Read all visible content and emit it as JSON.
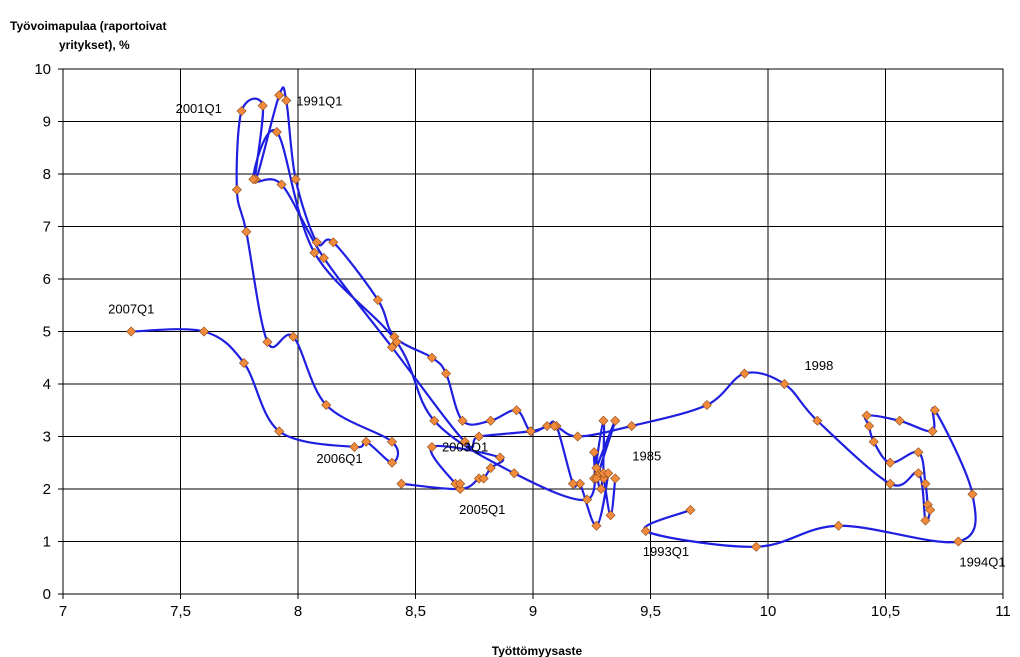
{
  "chart_data": {
    "type": "line",
    "ylabel": "Työvoimapulaa (raportoivat yritykset), %",
    "ylabel_lines": [
      "Työvoimapulaa (raportoivat",
      "yritykset), %"
    ],
    "xlabel": "Työttömyysaste",
    "xlim": [
      7,
      11
    ],
    "ylim": [
      0,
      10
    ],
    "grid": true,
    "x_ticks": [
      {
        "value": 7,
        "label": "7"
      },
      {
        "value": 7.5,
        "label": "7,5"
      },
      {
        "value": 8,
        "label": "8"
      },
      {
        "value": 8.5,
        "label": "8,5"
      },
      {
        "value": 9,
        "label": "9"
      },
      {
        "value": 9.5,
        "label": "9,5"
      },
      {
        "value": 10,
        "label": "10"
      },
      {
        "value": 10.5,
        "label": "10,5"
      },
      {
        "value": 11,
        "label": "11"
      }
    ],
    "y_ticks": [
      {
        "value": 0,
        "label": "0"
      },
      {
        "value": 1,
        "label": "1"
      },
      {
        "value": 2,
        "label": "2"
      },
      {
        "value": 3,
        "label": "3"
      },
      {
        "value": 4,
        "label": "4"
      },
      {
        "value": 5,
        "label": "5"
      },
      {
        "value": 6,
        "label": "6"
      },
      {
        "value": 7,
        "label": "7"
      },
      {
        "value": 8,
        "label": "8"
      },
      {
        "value": 9,
        "label": "9"
      },
      {
        "value": 10,
        "label": "10"
      }
    ],
    "series": [
      {
        "line_color": "#1f1fe0",
        "marker_color": "#f28a3c",
        "points": [
          [
            9.35,
            2.2
          ],
          [
            9.33,
            1.5
          ],
          [
            9.3,
            2.2
          ],
          [
            9.29,
            2.0
          ],
          [
            9.28,
            2.3
          ],
          [
            9.35,
            3.3
          ],
          [
            9.27,
            2.4
          ],
          [
            9.26,
            2.2
          ],
          [
            9.3,
            3.3
          ],
          [
            9.3,
            2.3
          ],
          [
            9.32,
            2.3
          ],
          [
            9.27,
            1.3
          ],
          [
            9.2,
            2.1
          ],
          [
            9.17,
            2.1
          ],
          [
            9.1,
            3.2
          ],
          [
            9.06,
            3.2
          ],
          [
            8.99,
            3.1
          ],
          [
            8.93,
            3.5
          ],
          [
            8.82,
            3.3
          ],
          [
            8.7,
            3.3
          ],
          [
            8.63,
            4.2
          ],
          [
            8.57,
            4.5
          ],
          [
            8.41,
            4.9
          ],
          [
            8.34,
            5.6
          ],
          [
            8.15,
            6.7
          ],
          [
            8.08,
            6.7
          ],
          [
            7.99,
            7.9
          ],
          [
            7.95,
            9.4
          ],
          [
            7.92,
            9.5
          ],
          [
            7.82,
            7.9
          ],
          [
            7.85,
            9.3
          ],
          [
            7.76,
            9.2
          ],
          [
            7.74,
            7.7
          ],
          [
            7.78,
            6.9
          ],
          [
            7.87,
            4.8
          ],
          [
            7.98,
            4.9
          ],
          [
            8.12,
            3.6
          ],
          [
            8.4,
            2.9
          ],
          [
            8.4,
            2.5
          ],
          [
            8.29,
            2.9
          ],
          [
            8.24,
            2.8
          ],
          [
            7.92,
            3.1
          ],
          [
            7.77,
            4.4
          ],
          [
            7.6,
            5.0
          ],
          [
            7.29,
            5.0
          ]
        ]
      },
      {
        "line_color": "#1f1fe0",
        "marker_color": "#f28a3c",
        "points": [
          [
            9.67,
            1.6
          ],
          [
            9.48,
            1.2
          ],
          [
            9.95,
            0.9
          ],
          [
            10.3,
            1.3
          ],
          [
            10.81,
            1.0
          ],
          [
            10.87,
            1.9
          ],
          [
            10.71,
            3.5
          ],
          [
            10.7,
            3.1
          ],
          [
            10.56,
            3.3
          ],
          [
            10.42,
            3.4
          ],
          [
            10.43,
            3.2
          ],
          [
            10.45,
            2.9
          ],
          [
            10.52,
            2.5
          ],
          [
            10.64,
            2.7
          ],
          [
            10.67,
            2.1
          ],
          [
            10.68,
            1.7
          ],
          [
            10.69,
            1.6
          ],
          [
            10.67,
            1.4
          ],
          [
            10.64,
            2.3
          ],
          [
            10.52,
            2.1
          ],
          [
            10.21,
            3.3
          ],
          [
            10.07,
            4.0
          ],
          [
            9.9,
            4.2
          ],
          [
            9.74,
            3.6
          ],
          [
            9.42,
            3.2
          ],
          [
            9.19,
            3.0
          ],
          [
            9.09,
            3.2
          ],
          [
            8.99,
            3.1
          ],
          [
            8.77,
            3.0
          ],
          [
            8.71,
            2.9
          ],
          [
            8.4,
            4.7
          ],
          [
            8.11,
            6.4
          ],
          [
            7.93,
            7.8
          ],
          [
            7.81,
            7.9
          ],
          [
            7.91,
            8.8
          ],
          [
            8.07,
            6.5
          ],
          [
            8.42,
            4.8
          ],
          [
            8.58,
            3.3
          ],
          [
            8.92,
            2.3
          ],
          [
            9.23,
            1.8
          ],
          [
            9.26,
            2.7
          ],
          [
            9.27,
            2.2
          ]
        ]
      },
      {
        "line_color": "#1f1fe0",
        "marker_color": "#f28a3c",
        "points": [
          [
            8.44,
            2.1
          ],
          [
            8.69,
            2.0
          ],
          [
            8.77,
            2.2
          ],
          [
            8.79,
            2.2
          ],
          [
            8.82,
            2.4
          ],
          [
            8.86,
            2.6
          ],
          [
            8.57,
            2.8
          ],
          [
            8.67,
            2.1
          ],
          [
            8.69,
            2.1
          ]
        ]
      }
    ],
    "annotations": [
      {
        "label": "2007Q1",
        "x": 7.29,
        "y": 5.0
      },
      {
        "label": "2001Q1",
        "x": 7.76,
        "y": 9.2
      },
      {
        "label": "1991Q1",
        "x": 7.95,
        "y": 9.4
      },
      {
        "label": "1998",
        "x": 10.07,
        "y": 4.0
      },
      {
        "label": "2003Q1",
        "x": 8.77,
        "y": 3.0
      },
      {
        "label": "2006Q1",
        "x": 8.24,
        "y": 2.8
      },
      {
        "label": "1985",
        "x": 9.35,
        "y": 2.2
      },
      {
        "label": "2005Q1",
        "x": 8.69,
        "y": 2.0
      },
      {
        "label": "1993Q1",
        "x": 9.48,
        "y": 1.2
      },
      {
        "label": "1994Q1",
        "x": 10.81,
        "y": 1.0
      }
    ]
  }
}
